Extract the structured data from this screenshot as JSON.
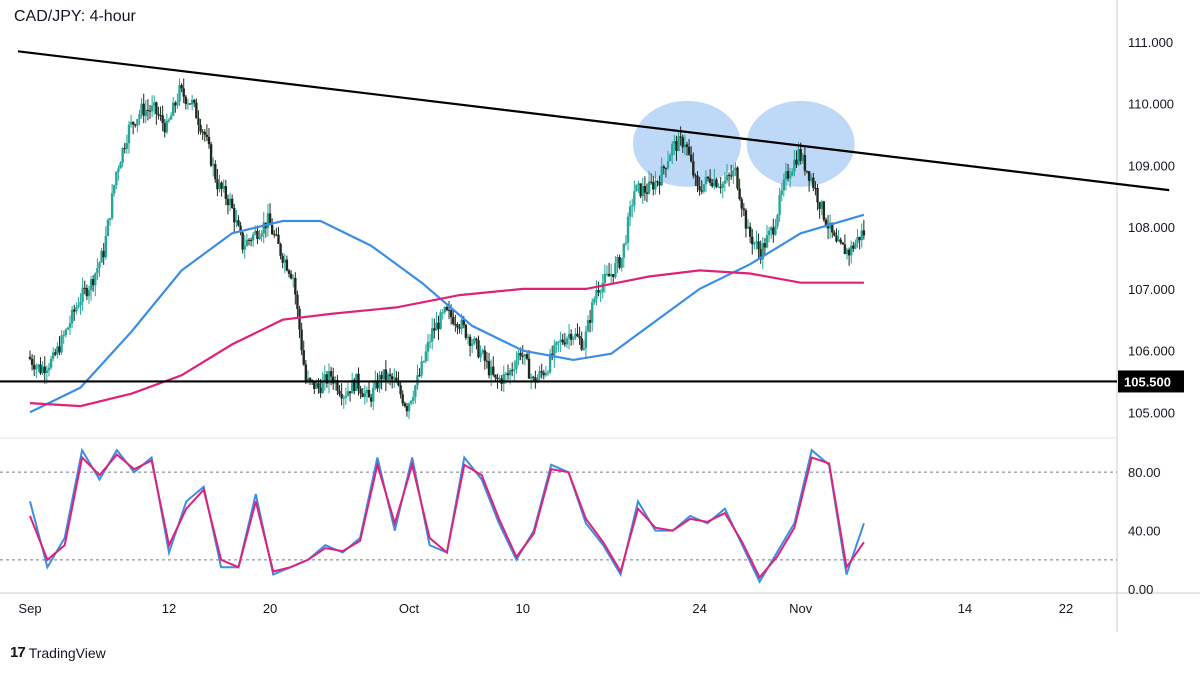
{
  "header": {
    "title": "CAD/JPY: 4-hour"
  },
  "branding": {
    "logo_mark": "17",
    "logo_text": "TradingView"
  },
  "colors": {
    "up": "#26a69a",
    "down": "#1f2a1f",
    "ma_fast": "#3a8ee6",
    "ma_slow": "#e0217a",
    "stoch_k": "#3a8ee6",
    "stoch_d": "#e0217a",
    "ellipse": "#a8ccf5",
    "axis": "#131722"
  },
  "chart_data": [
    {
      "type": "candlestick",
      "title": "CAD/JPY: 4-hour",
      "xlabel": "",
      "ylabel": "",
      "x_ticks": [
        "Sep",
        "12",
        "20",
        "Oct",
        "10",
        "24",
        "Nov",
        "14",
        "22"
      ],
      "y_ticks": [
        "105.000",
        "106.000",
        "107.000",
        "108.000",
        "109.000",
        "110.000",
        "111.000"
      ],
      "ylim": [
        104.6,
        111.6
      ],
      "horizontal_line": {
        "value": 105.5,
        "label": "105.500"
      },
      "trendline": {
        "from": {
          "x": "Sep 1",
          "y": 110.85
        },
        "to": {
          "x": "Nov 27",
          "y": 108.6
        }
      },
      "highlights": [
        {
          "x": "Oct 23",
          "y": 109.35
        },
        {
          "x": "Nov 1",
          "y": 109.35
        }
      ],
      "price_path": [
        {
          "x": "Sep 1",
          "y": 105.9
        },
        {
          "x": "Sep 2",
          "y": 105.7
        },
        {
          "x": "Sep 3",
          "y": 105.85
        },
        {
          "x": "Sep 4",
          "y": 106.3
        },
        {
          "x": "Sep 5",
          "y": 106.8
        },
        {
          "x": "Sep 6",
          "y": 107.1
        },
        {
          "x": "Sep 7",
          "y": 107.6
        },
        {
          "x": "Sep 8",
          "y": 108.9
        },
        {
          "x": "Sep 9",
          "y": 109.6
        },
        {
          "x": "Sep 10",
          "y": 109.9
        },
        {
          "x": "Sep 11",
          "y": 109.9
        },
        {
          "x": "Sep 12",
          "y": 109.6
        },
        {
          "x": "Sep 13",
          "y": 110.2
        },
        {
          "x": "Sep 14",
          "y": 110.0
        },
        {
          "x": "Sep 15",
          "y": 109.5
        },
        {
          "x": "Sep 16",
          "y": 108.7
        },
        {
          "x": "Sep 17",
          "y": 108.4
        },
        {
          "x": "Sep 18",
          "y": 107.7
        },
        {
          "x": "Sep 19",
          "y": 107.9
        },
        {
          "x": "Sep 20",
          "y": 108.1
        },
        {
          "x": "Sep 21",
          "y": 107.6
        },
        {
          "x": "Sep 22",
          "y": 107.2
        },
        {
          "x": "Sep 23",
          "y": 105.5
        },
        {
          "x": "Sep 24",
          "y": 105.4
        },
        {
          "x": "Sep 25",
          "y": 105.6
        },
        {
          "x": "Sep 26",
          "y": 105.3
        },
        {
          "x": "Sep 27",
          "y": 105.5
        },
        {
          "x": "Sep 28",
          "y": 105.2
        },
        {
          "x": "Sep 29",
          "y": 105.6
        },
        {
          "x": "Sep 30",
          "y": 105.5
        },
        {
          "x": "Oct 1",
          "y": 105.1
        },
        {
          "x": "Oct 2",
          "y": 105.6
        },
        {
          "x": "Oct 3",
          "y": 106.3
        },
        {
          "x": "Oct 4",
          "y": 106.6
        },
        {
          "x": "Oct 5",
          "y": 106.5
        },
        {
          "x": "Oct 6",
          "y": 106.2
        },
        {
          "x": "Oct 7",
          "y": 105.9
        },
        {
          "x": "Oct 8",
          "y": 105.5
        },
        {
          "x": "Oct 9",
          "y": 105.6
        },
        {
          "x": "Oct 10",
          "y": 106.0
        },
        {
          "x": "Oct 11",
          "y": 105.5
        },
        {
          "x": "Oct 12",
          "y": 105.7
        },
        {
          "x": "Oct 13",
          "y": 106.1
        },
        {
          "x": "Oct 14",
          "y": 106.3
        },
        {
          "x": "Oct 15",
          "y": 106.1
        },
        {
          "x": "Oct 16",
          "y": 107.0
        },
        {
          "x": "Oct 17",
          "y": 107.2
        },
        {
          "x": "Oct 18",
          "y": 107.5
        },
        {
          "x": "Oct 19",
          "y": 108.6
        },
        {
          "x": "Oct 20",
          "y": 108.6
        },
        {
          "x": "Oct 21",
          "y": 108.8
        },
        {
          "x": "Oct 22",
          "y": 109.3
        },
        {
          "x": "Oct 23",
          "y": 109.4
        },
        {
          "x": "Oct 24",
          "y": 108.6
        },
        {
          "x": "Oct 25",
          "y": 108.8
        },
        {
          "x": "Oct 26",
          "y": 108.7
        },
        {
          "x": "Oct 27",
          "y": 108.9
        },
        {
          "x": "Oct 28",
          "y": 107.9
        },
        {
          "x": "Oct 29",
          "y": 107.6
        },
        {
          "x": "Oct 30",
          "y": 108.0
        },
        {
          "x": "Oct 31",
          "y": 108.8
        },
        {
          "x": "Nov 1",
          "y": 109.2
        },
        {
          "x": "Nov 2",
          "y": 108.8
        },
        {
          "x": "Nov 3",
          "y": 108.2
        },
        {
          "x": "Nov 4",
          "y": 107.7
        },
        {
          "x": "Nov 5",
          "y": 107.6
        },
        {
          "x": "Nov 6",
          "y": 107.9
        }
      ],
      "series": [
        {
          "name": "",
          "color": "#3a8ee6",
          "points": [
            {
              "x": "Sep 1",
              "y": 105.0
            },
            {
              "x": "Sep 5",
              "y": 105.4
            },
            {
              "x": "Sep 9",
              "y": 106.3
            },
            {
              "x": "Sep 13",
              "y": 107.3
            },
            {
              "x": "Sep 17",
              "y": 107.9
            },
            {
              "x": "Sep 21",
              "y": 108.1
            },
            {
              "x": "Sep 24",
              "y": 108.1
            },
            {
              "x": "Sep 28",
              "y": 107.7
            },
            {
              "x": "Oct 2",
              "y": 107.1
            },
            {
              "x": "Oct 6",
              "y": 106.4
            },
            {
              "x": "Oct 10",
              "y": 106.0
            },
            {
              "x": "Oct 14",
              "y": 105.85
            },
            {
              "x": "Oct 17",
              "y": 105.95
            },
            {
              "x": "Oct 20",
              "y": 106.4
            },
            {
              "x": "Oct 24",
              "y": 107.0
            },
            {
              "x": "Oct 28",
              "y": 107.4
            },
            {
              "x": "Nov 1",
              "y": 107.9
            },
            {
              "x": "Nov 6",
              "y": 108.2
            }
          ]
        },
        {
          "name": "",
          "color": "#e0217a",
          "points": [
            {
              "x": "Sep 1",
              "y": 105.15
            },
            {
              "x": "Sep 5",
              "y": 105.1
            },
            {
              "x": "Sep 9",
              "y": 105.3
            },
            {
              "x": "Sep 13",
              "y": 105.6
            },
            {
              "x": "Sep 17",
              "y": 106.1
            },
            {
              "x": "Sep 21",
              "y": 106.5
            },
            {
              "x": "Sep 25",
              "y": 106.6
            },
            {
              "x": "Sep 30",
              "y": 106.7
            },
            {
              "x": "Oct 5",
              "y": 106.9
            },
            {
              "x": "Oct 10",
              "y": 107.0
            },
            {
              "x": "Oct 15",
              "y": 107.0
            },
            {
              "x": "Oct 20",
              "y": 107.2
            },
            {
              "x": "Oct 24",
              "y": 107.3
            },
            {
              "x": "Oct 28",
              "y": 107.25
            },
            {
              "x": "Nov 1",
              "y": 107.1
            },
            {
              "x": "Nov 6",
              "y": 107.1
            }
          ]
        }
      ]
    },
    {
      "type": "line",
      "title": "",
      "y_ticks": [
        "0.00",
        "40.00",
        "80.00"
      ],
      "ylim": [
        -2,
        102
      ],
      "reference_levels": [
        20,
        80
      ],
      "series": [
        {
          "name": "",
          "color": "#3a8ee6",
          "values": [
            60,
            15,
            35,
            95,
            75,
            95,
            80,
            90,
            25,
            60,
            70,
            15,
            15,
            65,
            10,
            15,
            20,
            30,
            25,
            35,
            90,
            40,
            90,
            30,
            25,
            90,
            75,
            45,
            20,
            40,
            85,
            80,
            45,
            30,
            10,
            60,
            40,
            40,
            50,
            45,
            55,
            30,
            5,
            25,
            45,
            95,
            85,
            10,
            45
          ]
        },
        {
          "name": "",
          "color": "#e0217a",
          "values": [
            50,
            20,
            30,
            90,
            78,
            92,
            82,
            88,
            30,
            55,
            68,
            20,
            15,
            60,
            12,
            15,
            20,
            28,
            26,
            33,
            85,
            45,
            85,
            35,
            25,
            85,
            78,
            48,
            22,
            38,
            82,
            80,
            48,
            32,
            12,
            55,
            42,
            40,
            48,
            46,
            52,
            32,
            8,
            22,
            42,
            90,
            86,
            15,
            32
          ]
        }
      ]
    }
  ]
}
